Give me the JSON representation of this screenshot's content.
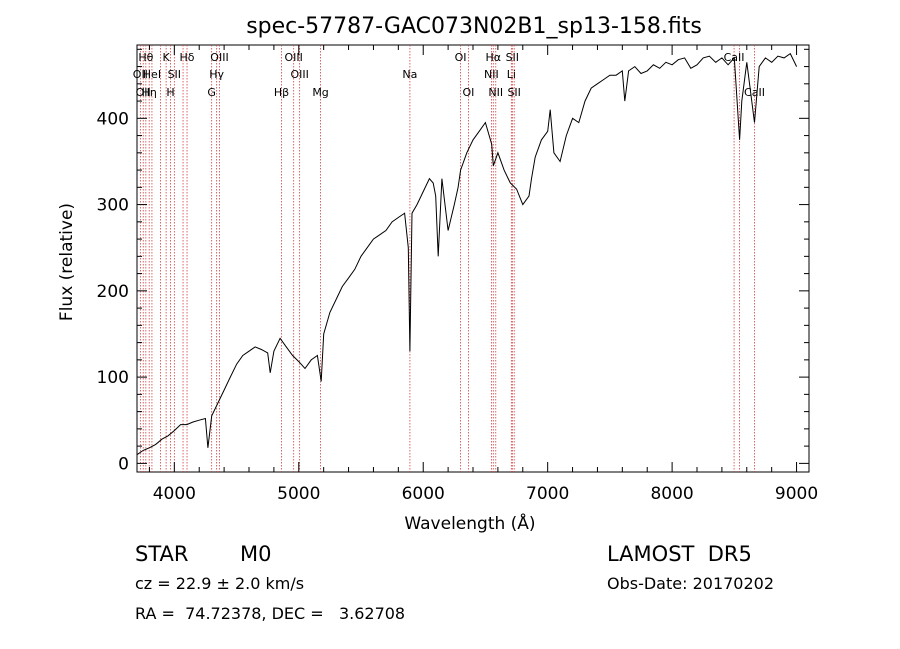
{
  "chart_data": {
    "type": "line",
    "title": "spec-57787-GAC073N02B1_sp13-158.fits",
    "xlabel": "Wavelength (Å)",
    "ylabel": "Flux (relative)",
    "xlim": [
      3700,
      9100
    ],
    "ylim": [
      -10,
      485
    ],
    "xticks": [
      4000,
      5000,
      6000,
      7000,
      8000,
      9000
    ],
    "yticks": [
      0,
      100,
      200,
      300,
      400
    ],
    "grid": false,
    "series": [
      {
        "color": "#000000",
        "x": [
          3700,
          3750,
          3800,
          3850,
          3900,
          3950,
          4000,
          4050,
          4100,
          4150,
          4200,
          4250,
          4270,
          4300,
          4350,
          4400,
          4450,
          4500,
          4550,
          4600,
          4650,
          4700,
          4750,
          4770,
          4800,
          4850,
          4900,
          4950,
          5000,
          5050,
          5100,
          5150,
          5180,
          5200,
          5250,
          5300,
          5350,
          5400,
          5450,
          5500,
          5550,
          5600,
          5650,
          5700,
          5750,
          5800,
          5850,
          5880,
          5893,
          5910,
          5950,
          6000,
          6050,
          6080,
          6100,
          6120,
          6150,
          6200,
          6250,
          6280,
          6300,
          6350,
          6400,
          6450,
          6500,
          6550,
          6563,
          6600,
          6650,
          6700,
          6750,
          6800,
          6850,
          6870,
          6900,
          6950,
          7000,
          7020,
          7050,
          7100,
          7150,
          7200,
          7250,
          7300,
          7350,
          7400,
          7450,
          7500,
          7550,
          7600,
          7620,
          7650,
          7700,
          7750,
          7800,
          7850,
          7900,
          7950,
          8000,
          8050,
          8100,
          8150,
          8200,
          8250,
          8300,
          8350,
          8400,
          8450,
          8500,
          8542,
          8560,
          8600,
          8662,
          8700,
          8750,
          8800,
          8850,
          8900,
          8950,
          9000
        ],
        "y": [
          10,
          15,
          18,
          22,
          28,
          32,
          38,
          45,
          45,
          48,
          50,
          52,
          18,
          55,
          70,
          85,
          100,
          115,
          125,
          130,
          135,
          132,
          128,
          105,
          130,
          145,
          135,
          125,
          118,
          110,
          120,
          125,
          95,
          150,
          175,
          190,
          205,
          215,
          225,
          240,
          250,
          260,
          265,
          270,
          280,
          285,
          290,
          250,
          130,
          290,
          300,
          315,
          330,
          325,
          310,
          240,
          330,
          270,
          300,
          320,
          340,
          360,
          375,
          385,
          395,
          370,
          345,
          360,
          340,
          325,
          318,
          300,
          310,
          330,
          355,
          375,
          385,
          410,
          360,
          350,
          380,
          400,
          395,
          420,
          435,
          440,
          445,
          450,
          450,
          455,
          420,
          455,
          460,
          452,
          455,
          462,
          458,
          465,
          462,
          468,
          470,
          458,
          462,
          470,
          472,
          465,
          470,
          462,
          470,
          375,
          420,
          465,
          395,
          460,
          470,
          465,
          472,
          470,
          475,
          460
        ]
      }
    ],
    "lines": [
      {
        "x": 3727,
        "label": "OII",
        "row": 1
      },
      {
        "x": 3750,
        "label": "OII",
        "row": 2
      },
      {
        "x": 3771,
        "label": "Hθ",
        "row": 0
      },
      {
        "x": 3798,
        "label": "Hη",
        "row": 2
      },
      {
        "x": 3820,
        "label": "HeI",
        "row": 1
      },
      {
        "x": 3889,
        "label": "",
        "row": 0
      },
      {
        "x": 3934,
        "label": "K",
        "row": 0
      },
      {
        "x": 3969,
        "label": "H",
        "row": 2
      },
      {
        "x": 4000,
        "label": "SII",
        "row": 1
      },
      {
        "x": 4070,
        "label": "",
        "row": 0
      },
      {
        "x": 4102,
        "label": "Hδ",
        "row": 0
      },
      {
        "x": 4300,
        "label": "G",
        "row": 2
      },
      {
        "x": 4340,
        "label": "Hγ",
        "row": 1
      },
      {
        "x": 4363,
        "label": "OIII",
        "row": 0
      },
      {
        "x": 4861,
        "label": "Hβ",
        "row": 2
      },
      {
        "x": 4959,
        "label": "OIII",
        "row": 0
      },
      {
        "x": 5007,
        "label": "OIII",
        "row": 1
      },
      {
        "x": 5175,
        "label": "Mg",
        "row": 2
      },
      {
        "x": 5893,
        "label": "Na",
        "row": 1
      },
      {
        "x": 6300,
        "label": "OI",
        "row": 0
      },
      {
        "x": 6363,
        "label": "OI",
        "row": 2
      },
      {
        "x": 6548,
        "label": "NII",
        "row": 1
      },
      {
        "x": 6563,
        "label": "Hα",
        "row": 0
      },
      {
        "x": 6583,
        "label": "NII",
        "row": 2
      },
      {
        "x": 6708,
        "label": "Li",
        "row": 1
      },
      {
        "x": 6716,
        "label": "SII",
        "row": 0
      },
      {
        "x": 6731,
        "label": "SII",
        "row": 2
      },
      {
        "x": 8498,
        "label": "CaII",
        "row": 0
      },
      {
        "x": 8542,
        "label": "",
        "row": 0
      },
      {
        "x": 8662,
        "label": "CaII",
        "row": 2
      }
    ]
  },
  "info": {
    "class": "STAR",
    "subclass": "M0",
    "survey": "LAMOST  DR5",
    "redshift": "cz = 22.9 ± 2.0 km/s",
    "obs_date": "Obs-Date: 20170202",
    "coords": "RA =  74.72378, DEC =   3.62708"
  }
}
